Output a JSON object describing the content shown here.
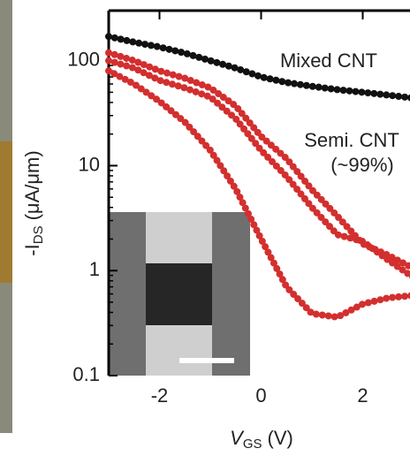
{
  "chart_data": {
    "type": "line",
    "x": [
      -3,
      -2.5,
      -2,
      -1.5,
      -1,
      -0.5,
      0,
      0.5,
      1,
      1.5,
      2,
      2.5,
      3
    ],
    "series": [
      {
        "name": "Mixed CNT",
        "color": "#111111",
        "values": [
          170,
          150,
          135,
          118,
          100,
          85,
          70,
          62,
          57,
          53,
          50,
          47,
          44
        ]
      },
      {
        "name": "Semi. CNT",
        "color": "#d32f2f",
        "values": [
          119,
          100,
          80,
          68,
          55,
          37,
          19,
          11.7,
          5.9,
          3.3,
          1.8,
          1.4,
          1.05
        ]
      },
      {
        "color": "#d32f2f",
        "values": [
          100,
          85,
          65,
          55,
          45,
          28,
          14,
          7.9,
          4,
          2.2,
          1.9,
          1.26,
          0.86
        ]
      },
      {
        "color": "#d32f2f",
        "values": [
          80,
          60,
          41,
          26,
          14,
          6,
          2,
          0.7,
          0.39,
          0.36,
          0.48,
          0.55,
          0.58
        ]
      }
    ],
    "annotation": "(~99%)",
    "xlabel": [
      "V",
      "GS",
      "(V)"
    ],
    "ylabel": [
      "-I",
      "DS",
      "(μA/μm)"
    ],
    "xlim": [
      -3,
      3
    ],
    "ylim": [
      0.1,
      300
    ],
    "ylog": true,
    "xticks": [
      -2,
      0,
      2
    ],
    "yticks": [
      0.1,
      1,
      10,
      100
    ]
  }
}
